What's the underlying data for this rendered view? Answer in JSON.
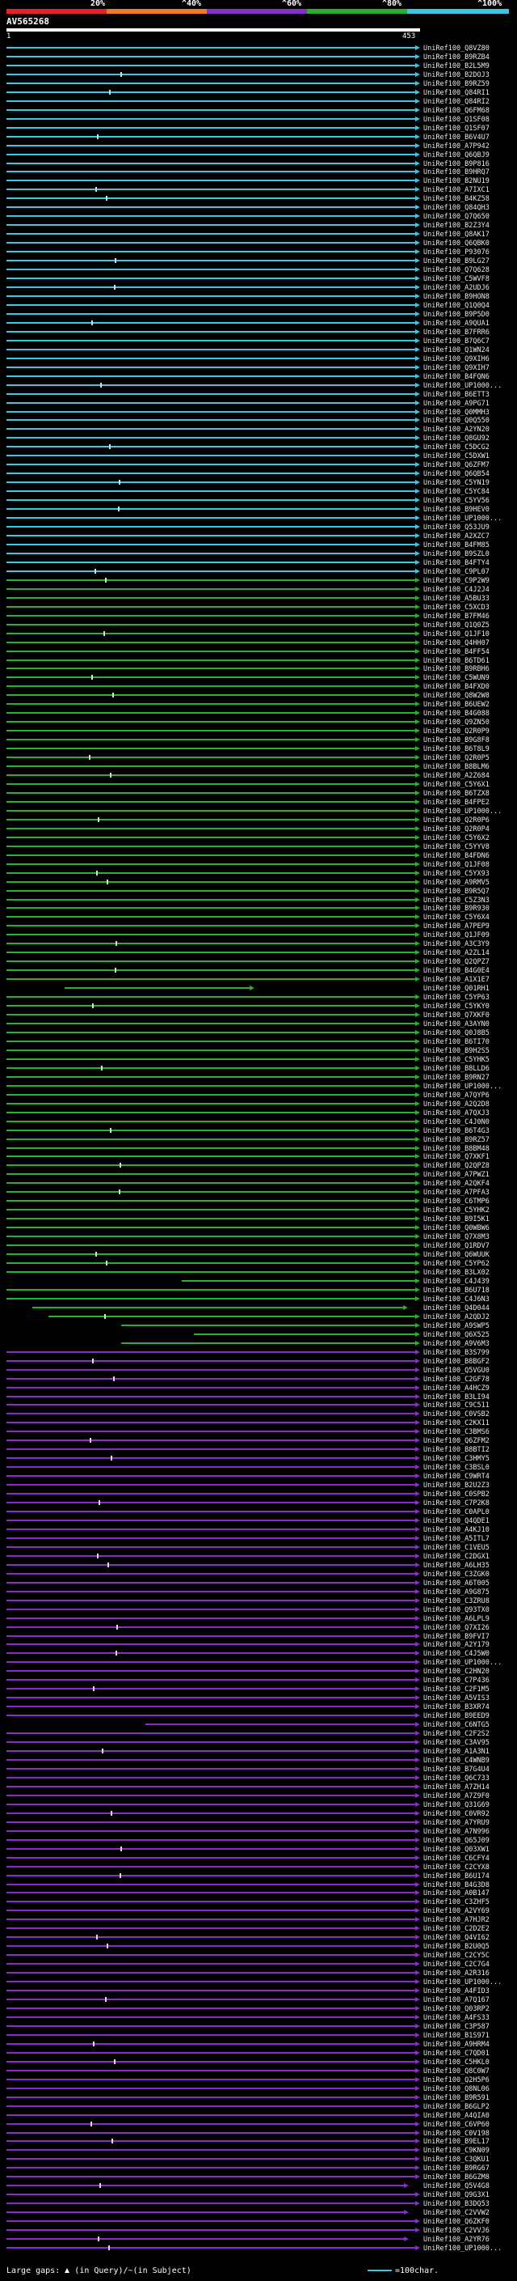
{
  "scale_labels": [
    "20%",
    "^40%",
    "^60%",
    "^80%",
    "^100%"
  ],
  "scale_colors": [
    "#e8202a",
    "#f07820",
    "#8a2ec8",
    "#2ab02a",
    "#3cc8e0"
  ],
  "query_name": "AV565268",
  "ruler_start": "1",
  "ruler_end": "453",
  "legend": {
    "gaps_prefix": "Large gaps:",
    "gaps_suffix": "(in Query)/~(in Subject)",
    "scale_text": "=100char."
  },
  "hit_labels": [
    "UniRef100_Q8VZ80",
    "UniRef100_B9RZB4",
    "UniRef100_B2L5M9",
    "UniRef100_B2DOJ3",
    "UniRef100_B9RZ59",
    "UniRef100_Q84RI1",
    "UniRef100_Q84RI2",
    "UniRef100_Q6FM68",
    "UniRef100_Q1SF08",
    "UniRef100_Q1SF07",
    "UniRef100_B6V4U7",
    "UniRef100_A7P942",
    "UniRef100_Q6QBJ9",
    "UniRef100_B9P816",
    "UniRef100_B9HRQ7",
    "UniRef100_B2NU19",
    "UniRef100_A7IXC1",
    "UniRef100_B4KZ58",
    "UniRef100_Q84QH3",
    "UniRef100_Q7Q650",
    "UniRef100_B2Z3Y4",
    "UniRef100_Q8AK17",
    "UniRef100_Q6QBK0",
    "UniRef100_P93076",
    "UniRef100_B9LG27",
    "UniRef100_Q7Q628",
    "UniRef100_C5WVF8",
    "UniRef100_A2UDJ6",
    "UniRef100_B9HON8",
    "UniRef100_Q1Q0Q4",
    "UniRef100_B9P5D0",
    "UniRef100_A9QUA1",
    "UniRef100_B7FRR6",
    "UniRef100_B7Q6C7",
    "UniRef100_Q1WN24",
    "UniRef100_Q9XIH6",
    "UniRef100_Q9XIH7",
    "UniRef100_B4FQN6",
    "UniRef100_UP1000...",
    "UniRef100_B6ETT3",
    "UniRef100_A9PG71",
    "UniRef100_Q0MMH3",
    "UniRef100_Q0Q550",
    "UniRef100_A2YN20",
    "UniRef100_Q8GU92",
    "UniRef100_C5DCG2",
    "UniRef100_C5DXW1",
    "UniRef100_Q6ZFM7",
    "UniRef100_Q6QB54",
    "UniRef100_C5YN19",
    "UniRef100_C5YC84",
    "UniRef100_C5YV56",
    "UniRef100_B9HEV0",
    "UniRef100_UP1000...",
    "UniRef100_Q53JU9",
    "UniRef100_A2XZC7",
    "UniRef100_B4FM85",
    "UniRef100_B9SZL0",
    "UniRef100_B4FTY4",
    "UniRef100_C9PL07",
    "UniRef100_C9P2W9",
    "UniRef100_C4J2J4",
    "UniRef100_A5BU33",
    "UniRef100_C5XCD3",
    "UniRef100_B7FM46",
    "UniRef100_Q1Q0Z5",
    "UniRef100_Q1JF10",
    "UniRef100_Q4HH07",
    "UniRef100_B4FF54",
    "UniRef100_B6TD61",
    "UniRef100_B9RBH6",
    "UniRef100_C5WUN9",
    "UniRef100_B4FXD0",
    "UniRef100_Q8W2W8",
    "UniRef100_B6UEW2",
    "UniRef100_B4G088",
    "UniRef100_Q9ZN50",
    "UniRef100_Q2R0P9",
    "UniRef100_B9G8F8",
    "UniRef100_B6T8L9",
    "UniRef100_Q2R0P5",
    "UniRef100_B8BLM6",
    "UniRef100_A2Z684",
    "UniRef100_C5Y6X1",
    "UniRef100_B6TZX8",
    "UniRef100_B4FPE2",
    "UniRef100_UP1000...",
    "UniRef100_Q2R0P6",
    "UniRef100_Q2R0P4",
    "UniRef100_C5Y6X2",
    "UniRef100_C5YYV8",
    "UniRef100_B4FDN6",
    "UniRef100_Q1JF08",
    "UniRef100_C5YX93",
    "UniRef100_A9RMV5",
    "UniRef100_B9R5Q7",
    "UniRef100_C5Z3N3",
    "UniRef100_B9R930",
    "UniRef100_C5Y6X4",
    "UniRef100_A7PEP9",
    "UniRef100_Q1JF09",
    "UniRef100_A3C3Y9",
    "UniRef100_A2ZL14",
    "UniRef100_Q2QPZ7",
    "UniRef100_B4G0E4",
    "UniRef100_A1X1E7",
    "UniRef100_Q01RH1",
    "UniRef100_C5YP63",
    "UniRef100_C5YKY0",
    "UniRef100_Q7XKF0",
    "UniRef100_A3AYN0",
    "UniRef100_Q0J8B5",
    "UniRef100_B6TI70",
    "UniRef100_B9H2S5",
    "UniRef100_C5YHK5",
    "UniRef100_B8LLD6",
    "UniRef100_B9RN27",
    "UniRef100_UP1000...",
    "UniRef100_A7QYP6",
    "UniRef100_A2Q2D8",
    "UniRef100_A7QXJ3",
    "UniRef100_C4J0N0",
    "UniRef100_B6T4G3",
    "UniRef100_B9RZ57",
    "UniRef100_B8BM48",
    "UniRef100_Q7XKF1",
    "UniRef100_Q2QPZ8",
    "UniRef100_A7PWZ1",
    "UniRef100_A2QKF4",
    "UniRef100_A7PFA3",
    "UniRef100_C6TMP6",
    "UniRef100_C5YHK2",
    "UniRef100_B9I5K1",
    "UniRef100_Q0WBW6",
    "UniRef100_Q7X8M3",
    "UniRef100_Q1RDV7",
    "UniRef100_Q6WUUK",
    "UniRef100_C5YP62",
    "UniRef100_B3LX02",
    "UniRef100_C4J439",
    "UniRef100_B6U718",
    "UniRef100_C4J6N3",
    "UniRef100_Q4D044",
    "UniRef100_A2QDJ2",
    "UniRef100_A9SWP5",
    "UniRef100_Q6X525",
    "UniRef100_A9V6M3",
    "UniRef100_B3S799",
    "UniRef100_B8BGF2",
    "UniRef100_Q5VGU0",
    "UniRef100_C2GF78",
    "UniRef100_A4HCZ9",
    "UniRef100_B3LI94",
    "UniRef100_C9C511",
    "UniRef100_C0VSB2",
    "UniRef100_C2KX11",
    "UniRef100_C3BMS6",
    "UniRef100_Q6ZFM2",
    "UniRef100_B8BTI2",
    "UniRef100_C3HMY5",
    "UniRef100_C3BSL0",
    "UniRef100_C9WRT4",
    "UniRef100_B2U2Z3",
    "UniRef100_C0SPB2",
    "UniRef100_C7P2K8",
    "UniRef100_C0APL0",
    "UniRef100_Q4QDE1",
    "UniRef100_A4KJ10",
    "UniRef100_A5ITL7",
    "UniRef100_C1VEU5",
    "UniRef100_C2DGX1",
    "UniRef100_A6LH35",
    "UniRef100_C3ZGK0",
    "UniRef100_A6T005",
    "UniRef100_A9G875",
    "UniRef100_C3ZRU8",
    "UniRef100_Q93TX0",
    "UniRef100_A6LPL9",
    "UniRef100_Q7XI26",
    "UniRef100_B9FVI7",
    "UniRef100_A2Y179",
    "UniRef100_C4J5W0",
    "UniRef100_UP1000...",
    "UniRef100_C2HN20",
    "UniRef100_C7P436",
    "UniRef100_C2F1M5",
    "UniRef100_A5VIS3",
    "UniRef100_B3XR74",
    "UniRef100_B9EED9",
    "UniRef100_C6NTG5",
    "UniRef100_C2F2S2",
    "UniRef100_C3AV95",
    "UniRef100_A1A3N1",
    "UniRef100_C4WNB9",
    "UniRef100_B7G4U4",
    "UniRef100_Q6C733",
    "UniRef100_A7ZH14",
    "UniRef100_A7Z9F0",
    "UniRef100_Q31G69",
    "UniRef100_C0VR92",
    "UniRef100_A7YRU9",
    "UniRef100_A7N996",
    "UniRef100_Q65J09",
    "UniRef100_Q03XW1",
    "UniRef100_C6CFY4",
    "UniRef100_C2CYX8",
    "UniRef100_B6U174",
    "UniRef100_B4G3D8",
    "UniRef100_A0B147",
    "UniRef100_C3ZHF5",
    "UniRef100_A2VY69",
    "UniRef100_A7HJR2",
    "UniRef100_C2D2E2",
    "UniRef100_Q4VI62",
    "UniRef100_B2U0Q5",
    "UniRef100_C2CY5C",
    "UniRef100_C2C7G4",
    "UniRef100_A2R316",
    "UniRef100_UP1000...",
    "UniRef100_A4FID3",
    "UniRef100_A7Q167",
    "UniRef100_Q03RP2",
    "UniRef100_A4FS33",
    "UniRef100_C3P587",
    "UniRef100_B1S971",
    "UniRef100_A9HRM4",
    "UniRef100_C7QD01",
    "UniRef100_C5HKL0",
    "UniRef100_Q8C0W7",
    "UniRef100_Q2H5P6",
    "UniRef100_Q8NL06",
    "UniRef100_B9R591",
    "UniRef100_B6GLP2",
    "UniRef100_A4QIA0",
    "UniRef100_C6VP60",
    "UniRef100_C0V198",
    "UniRef100_B9EL17",
    "UniRef100_C9KN09",
    "UniRef100_C3QKU1",
    "UniRef100_B9RG67",
    "UniRef100_B6GZM8",
    "UniRef100_Q5V4G8",
    "UniRef100_Q9G3X1",
    "UniRef100_B3DQ53",
    "UniRef100_C2VVW2",
    "UniRef100_Q6ZKF0",
    "UniRef100_C2VVJ6",
    "UniRef100_A2YR76",
    "UniRef100_UP1000..."
  ]
}
